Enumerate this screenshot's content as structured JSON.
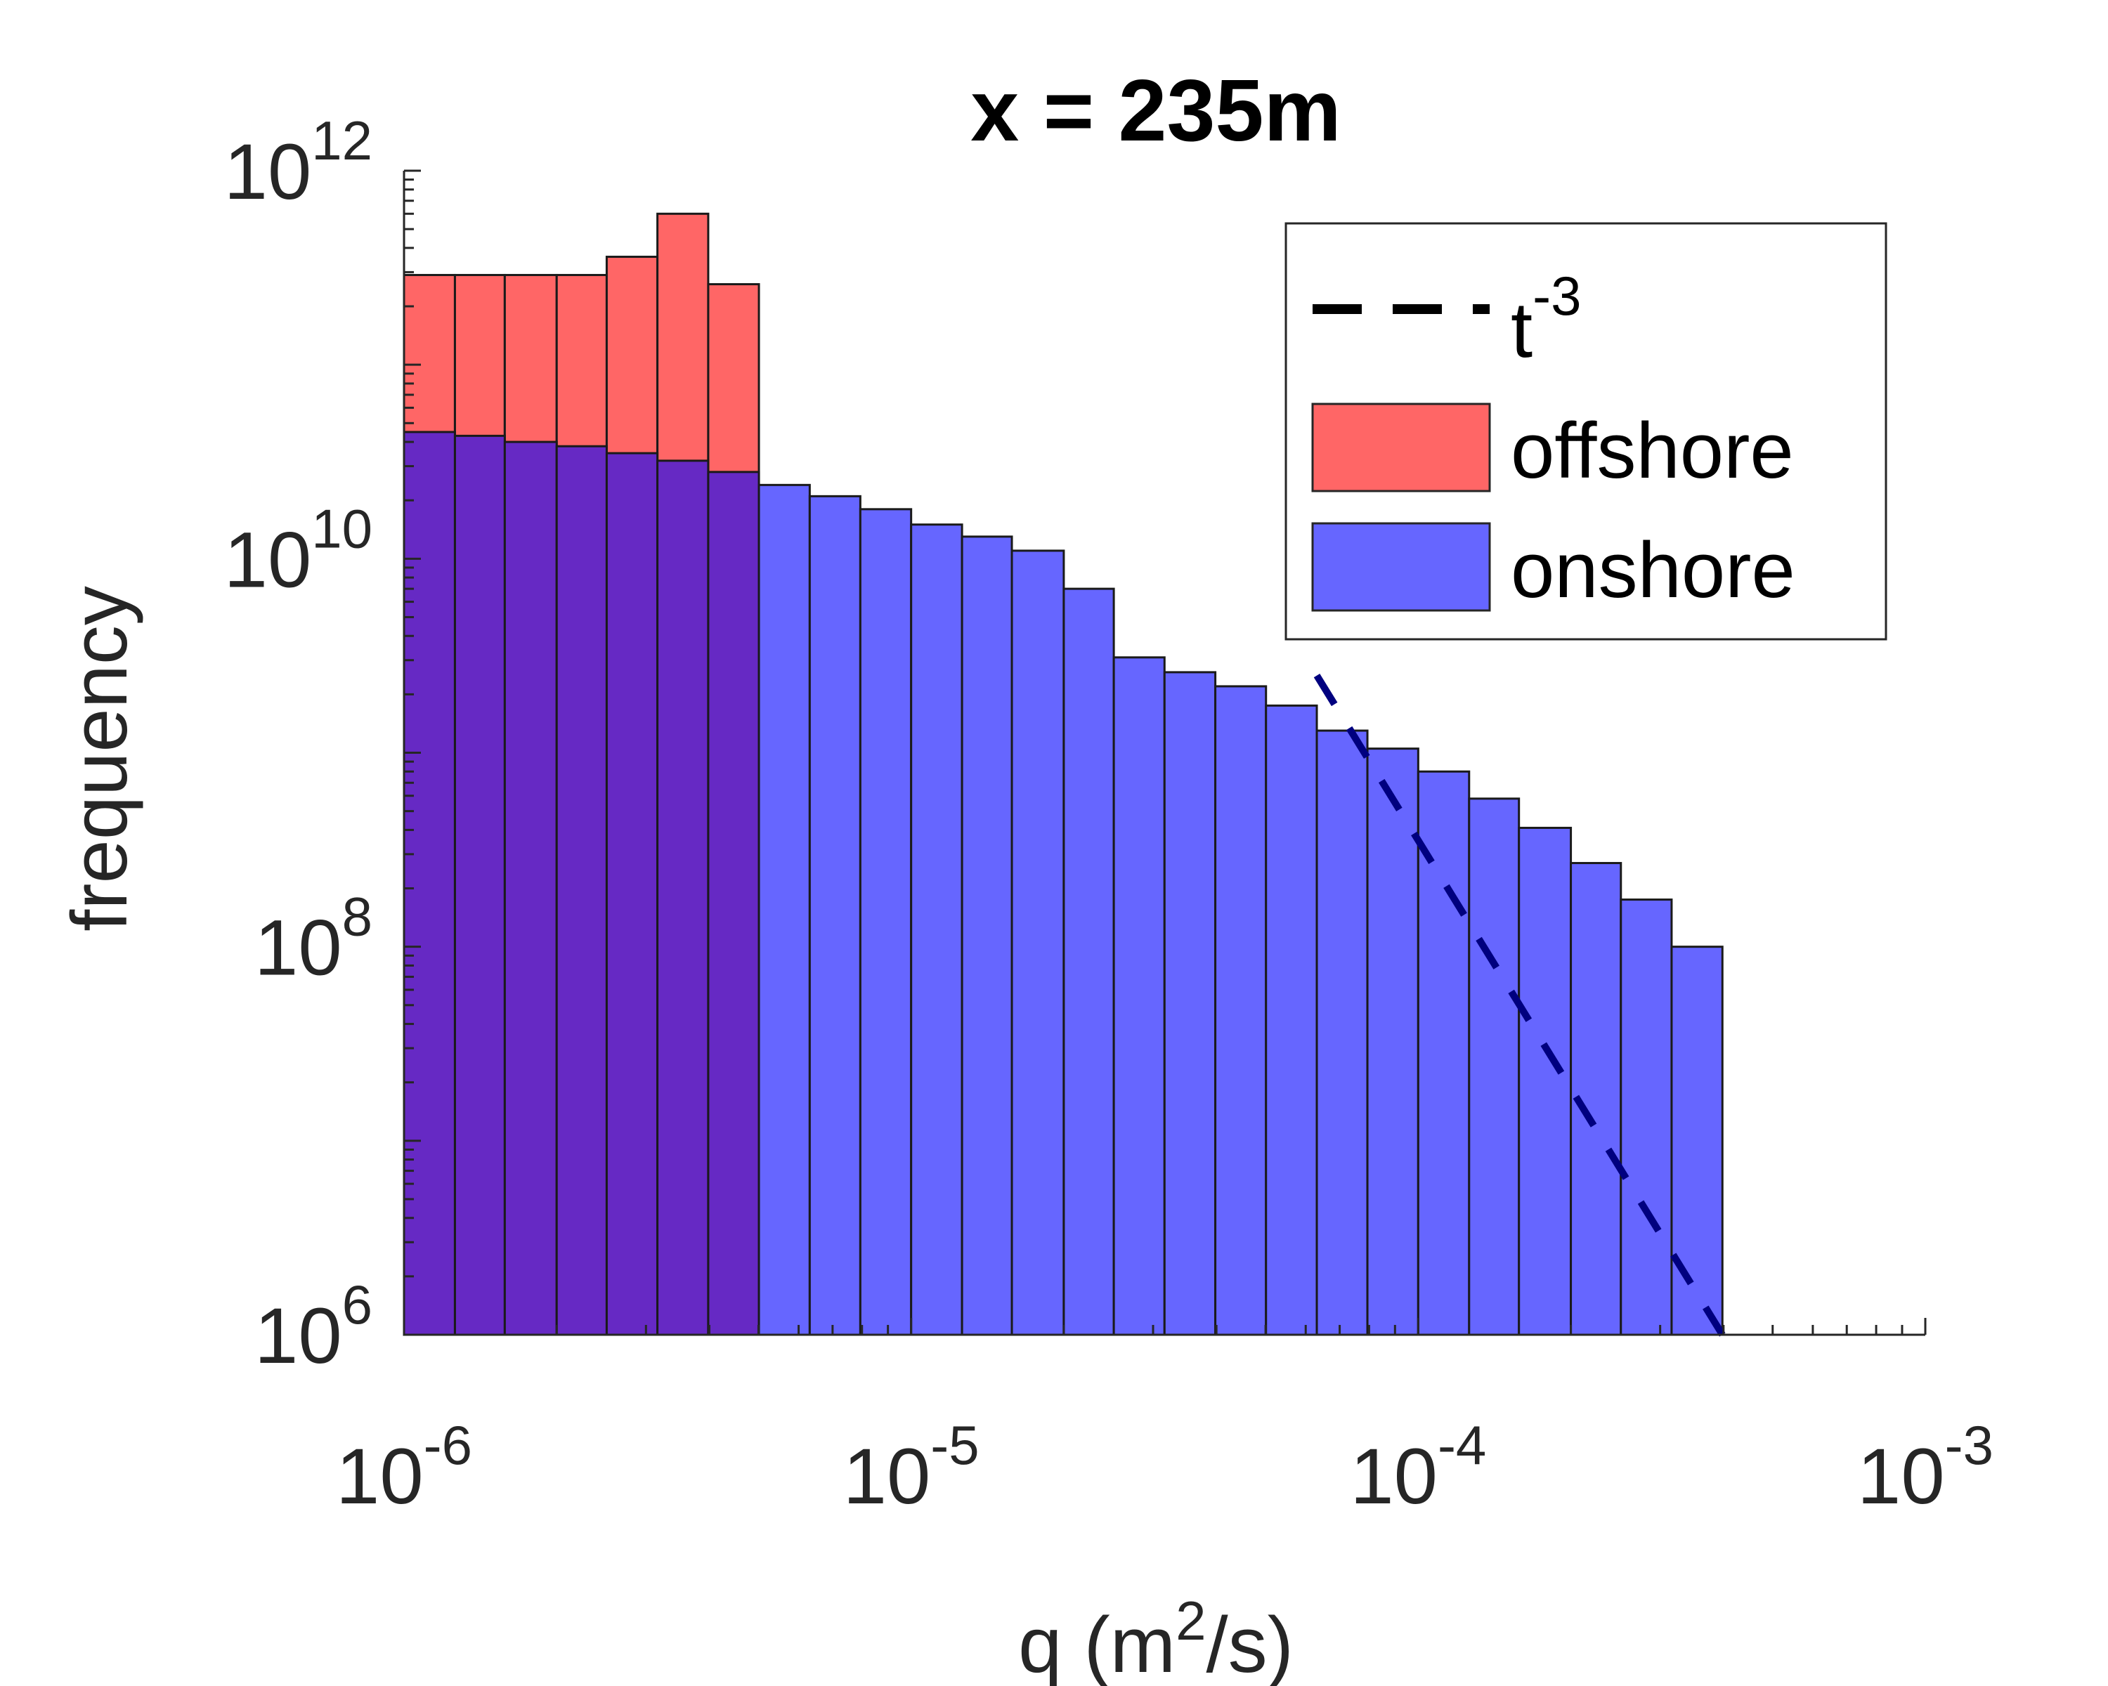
{
  "chart_data": {
    "type": "bar",
    "title": "x = 235m",
    "xlabel": {
      "pre": "q (m",
      "sup": "2",
      "post": "/s)"
    },
    "ylabel": "frequency",
    "xscale": "log",
    "yscale": "log",
    "xlim": [
      1e-06,
      0.001
    ],
    "ylim": [
      1000000.0,
      1000000000000.0
    ],
    "x_ticks": [
      {
        "value": 1e-06,
        "base": "10",
        "exp": "-6"
      },
      {
        "value": 1e-05,
        "base": "10",
        "exp": "-5"
      },
      {
        "value": 0.0001,
        "base": "10",
        "exp": "-4"
      },
      {
        "value": 0.001,
        "base": "10",
        "exp": "-3"
      }
    ],
    "y_ticks": [
      {
        "value": 1000000.0,
        "base": "10",
        "exp": "6"
      },
      {
        "value": 100000000.0,
        "base": "10",
        "exp": "8"
      },
      {
        "value": 10000000000.0,
        "base": "10",
        "exp": "10"
      },
      {
        "value": 1000000000000.0,
        "base": "10",
        "exp": "12"
      }
    ],
    "bin_edges": [
      1e-06,
      1.26e-06,
      1.58e-06,
      2e-06,
      2.51e-06,
      3.16e-06,
      3.98e-06,
      5.01e-06,
      6.31e-06,
      7.94e-06,
      1e-05,
      1.26e-05,
      1.58e-05,
      2e-05,
      2.51e-05,
      3.16e-05,
      3.98e-05,
      5.01e-05,
      6.31e-05,
      7.94e-05,
      0.0001,
      0.000126,
      0.000158,
      0.0002,
      0.000251,
      0.000316,
      0.000398
    ],
    "series": [
      {
        "name": "offshore",
        "color": "#ff6666",
        "values": [
          290000000000.0,
          290000000000.0,
          290000000000.0,
          290000000000.0,
          360000000000.0,
          600000000000.0,
          260000000000.0
        ]
      },
      {
        "name": "onshore",
        "color": "#6666ff",
        "values": [
          45000000000.0,
          43000000000.0,
          40000000000.0,
          38000000000.0,
          35000000000.0,
          32000000000.0,
          28000000000.0,
          24000000000.0,
          21000000000.0,
          18000000000.0,
          15000000000.0,
          13000000000.0,
          11000000000.0,
          7000000000.0,
          3100000000.0,
          2600000000.0,
          2200000000.0,
          1750000000.0,
          1300000000.0,
          1050000000.0,
          800000000.0,
          580000000.0,
          410000000.0,
          270000000.0,
          175000000.0,
          100000000.0
        ]
      }
    ],
    "overlap_color": "#6629c4",
    "reference_line": {
      "name": "t",
      "name_sup": "-3",
      "style": "dashed",
      "color": "#00007f",
      "x": [
        6.31e-05,
        0.000398
      ],
      "y": [
        2500000000.0,
        1000000.0
      ]
    },
    "legend": {
      "position": "top-right"
    },
    "grid": false
  }
}
